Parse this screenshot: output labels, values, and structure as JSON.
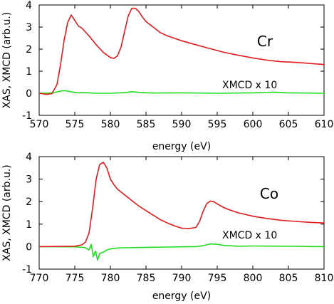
{
  "chart_data": [
    {
      "type": "line",
      "xlabel": "energy (eV)",
      "ylabel": "XAS, XMCD (arb.u.)",
      "xlim": [
        570,
        610
      ],
      "ylim": [
        -1,
        4
      ],
      "xticks": [
        570,
        575,
        580,
        585,
        590,
        595,
        600,
        605,
        610
      ],
      "yticks": [
        -1,
        0,
        1,
        2,
        3,
        4
      ],
      "element_label": "Cr",
      "annotation": "XMCD x 10",
      "series": [
        {
          "kind": "xas",
          "color": "#e41a1c",
          "x": [
            570,
            571,
            571.8,
            572.5,
            573,
            573.5,
            574,
            574.5,
            575,
            575.5,
            576,
            577,
            578,
            579,
            580,
            580.5,
            581,
            581.5,
            582,
            582.5,
            583,
            583.5,
            584,
            584.5,
            585,
            586,
            587,
            588,
            590,
            592,
            594,
            596,
            598,
            600,
            602,
            604,
            606,
            608,
            610
          ],
          "y": [
            0.0,
            -0.05,
            -0.02,
            0.4,
            1.3,
            2.4,
            3.2,
            3.55,
            3.3,
            3.05,
            2.95,
            2.6,
            2.2,
            1.85,
            1.62,
            1.58,
            1.7,
            2.1,
            2.8,
            3.5,
            3.85,
            3.85,
            3.7,
            3.45,
            3.25,
            3.0,
            2.75,
            2.6,
            2.38,
            2.2,
            2.02,
            1.85,
            1.72,
            1.6,
            1.5,
            1.43,
            1.4,
            1.35,
            1.3
          ]
        },
        {
          "kind": "xmcd",
          "color": "#22dd22",
          "x": [
            570,
            572,
            572.5,
            573,
            573.5,
            574,
            574.5,
            575,
            575.5,
            576,
            577,
            578,
            580,
            582,
            583,
            584,
            586,
            590,
            595,
            600,
            603,
            605,
            610
          ],
          "y": [
            0.0,
            0.02,
            0.06,
            0.1,
            0.12,
            0.1,
            0.06,
            0.04,
            0.02,
            0.03,
            0.02,
            0.0,
            0.0,
            0.03,
            0.07,
            0.04,
            0.01,
            0.02,
            0.0,
            0.02,
            0.05,
            0.02,
            0.0
          ]
        }
      ]
    },
    {
      "type": "line",
      "xlabel": "energy (eV)",
      "ylabel": "XAS, XMCD (arb.u.)",
      "xlim": [
        770,
        810
      ],
      "ylim": [
        -1,
        4
      ],
      "xticks": [
        770,
        775,
        780,
        785,
        790,
        795,
        800,
        805,
        810
      ],
      "yticks": [
        -1,
        0,
        1,
        2,
        3,
        4
      ],
      "element_label": "Co",
      "annotation": "XMCD x 10",
      "series": [
        {
          "kind": "xas",
          "color": "#e41a1c",
          "x": [
            770,
            775,
            776,
            776.5,
            777,
            777.5,
            778,
            778.5,
            779,
            779.5,
            780,
            780.5,
            781,
            782,
            783,
            784,
            785,
            786,
            787,
            788,
            789,
            790,
            791,
            792,
            792.5,
            793,
            793.5,
            794,
            794.5,
            795,
            796,
            797,
            798,
            800,
            802,
            804,
            806,
            808,
            810
          ],
          "y": [
            0.0,
            0.02,
            0.08,
            0.2,
            0.6,
            1.7,
            3.0,
            3.65,
            3.75,
            3.5,
            3.0,
            2.75,
            2.55,
            2.3,
            2.05,
            1.8,
            1.6,
            1.4,
            1.2,
            1.05,
            0.92,
            0.82,
            0.8,
            0.85,
            1.1,
            1.55,
            1.9,
            2.02,
            2.0,
            1.9,
            1.72,
            1.6,
            1.5,
            1.35,
            1.25,
            1.17,
            1.12,
            1.08,
            1.05
          ]
        },
        {
          "kind": "xmcd",
          "color": "#22dd22",
          "x": [
            770,
            775,
            776,
            776.5,
            777,
            777.3,
            777.6,
            777.9,
            778.2,
            778.5,
            779,
            779.5,
            780,
            781,
            782,
            784,
            786,
            788,
            790,
            792,
            793,
            794,
            795,
            796,
            798,
            800,
            805,
            810
          ],
          "y": [
            0.0,
            -0.01,
            -0.03,
            -0.05,
            -0.15,
            0.1,
            -0.45,
            -0.2,
            -0.6,
            -0.3,
            -0.25,
            -0.15,
            -0.1,
            -0.06,
            -0.05,
            -0.04,
            -0.03,
            -0.02,
            -0.01,
            0.0,
            0.04,
            0.12,
            0.1,
            0.05,
            0.02,
            0.03,
            0.02,
            0.0
          ]
        }
      ]
    }
  ]
}
